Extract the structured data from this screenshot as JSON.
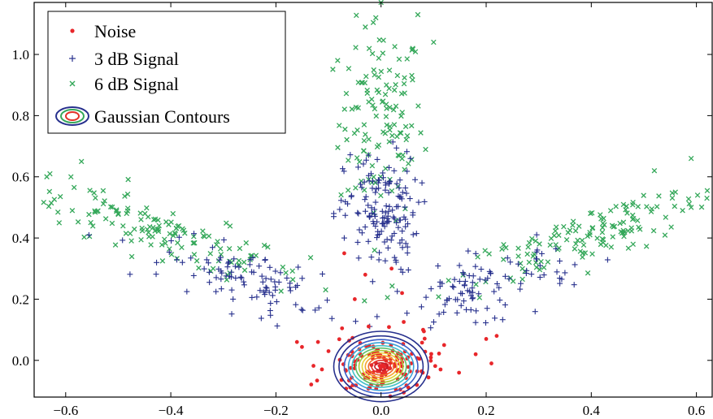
{
  "chart_data": {
    "type": "scatter",
    "title": "",
    "xlabel": "",
    "ylabel": "",
    "xlim": [
      -0.66,
      0.63
    ],
    "ylim": [
      -0.12,
      1.17
    ],
    "x_ticks": [
      -0.6,
      -0.4,
      -0.2,
      0.0,
      0.2,
      0.4,
      0.6
    ],
    "x_tick_labels": [
      "−0.6",
      "−0.4",
      "−0.2",
      "0.0",
      "0.2",
      "0.4",
      "0.6"
    ],
    "y_ticks": [
      0.0,
      0.2,
      0.4,
      0.6,
      0.8,
      1.0
    ],
    "y_tick_labels": [
      "0.0",
      "0.2",
      "0.4",
      "0.6",
      "0.8",
      "1.0"
    ],
    "grid": false,
    "legend_position": "top-left",
    "series": [
      {
        "name": "Noise",
        "marker": "dot",
        "color": "#e8262a",
        "clusters": [
          {
            "cx": 0.0,
            "cy": -0.02,
            "sx": 0.05,
            "sy": 0.05,
            "n": 150
          }
        ],
        "extra_points": [
          [
            -0.07,
            0.35
          ],
          [
            -0.03,
            0.28
          ],
          [
            0.02,
            0.3
          ],
          [
            -0.12,
            0.06
          ],
          [
            0.12,
            0.05
          ],
          [
            0.18,
            0.02
          ],
          [
            0.2,
            0.07
          ],
          [
            -0.16,
            0.06
          ],
          [
            0.22,
            0.08
          ],
          [
            0.21,
            -0.01
          ],
          [
            -0.1,
            0.03
          ],
          [
            0.08,
            0.1
          ],
          [
            -0.05,
            0.2
          ],
          [
            0.04,
            0.22
          ]
        ]
      },
      {
        "name": "3 dB Signal",
        "marker": "plus",
        "color": "#27308d",
        "clusters": [
          {
            "cx": 0.0,
            "cy": 0.48,
            "sx": 0.035,
            "sy": 0.1,
            "n": 150
          },
          {
            "cx": -0.24,
            "cy": 0.26,
            "sx": 0.06,
            "sy": 0.07,
            "n": 100
          },
          {
            "cx": 0.2,
            "cy": 0.24,
            "sx": 0.06,
            "sy": 0.07,
            "n": 100
          }
        ],
        "extra_points": [
          [
            -0.09,
            0.47
          ],
          [
            -0.07,
            0.4
          ],
          [
            -0.09,
            0.48
          ]
        ]
      },
      {
        "name": "6 dB Signal",
        "marker": "x",
        "color": "#35a85a",
        "clusters": [
          {
            "cx": 0.0,
            "cy": 0.78,
            "sx": 0.04,
            "sy": 0.16,
            "n": 130
          },
          {
            "cx": -0.42,
            "cy": 0.42,
            "sx": 0.1,
            "sy": 0.06,
            "n": 150
          },
          {
            "cx": 0.42,
            "cy": 0.42,
            "sx": 0.1,
            "sy": 0.06,
            "n": 150
          }
        ],
        "extra_points": [
          [
            0.0,
            1.17
          ],
          [
            0.07,
            1.13
          ],
          [
            0.1,
            1.04
          ],
          [
            -0.01,
            1.12
          ],
          [
            -0.63,
            0.61
          ],
          [
            -0.59,
            0.6
          ],
          [
            -0.57,
            0.65
          ],
          [
            0.59,
            0.5
          ],
          [
            0.62,
            0.53
          ],
          [
            0.56,
            0.55
          ],
          [
            0.59,
            0.66
          ],
          [
            0.52,
            0.62
          ],
          [
            -0.5,
            0.48
          ]
        ]
      },
      {
        "name": "Gaussian Contours",
        "type": "contour",
        "center": [
          0.0,
          -0.02
        ],
        "radii_x": [
          0.09,
          0.08,
          0.07,
          0.062,
          0.055,
          0.048,
          0.042,
          0.036,
          0.03,
          0.024,
          0.018,
          0.012
        ],
        "radii_y": [
          0.115,
          0.1,
          0.088,
          0.078,
          0.068,
          0.06,
          0.052,
          0.044,
          0.036,
          0.028,
          0.02,
          0.012
        ],
        "colors": [
          "#27308d",
          "#27308d",
          "#3b5ec7",
          "#3aa0d8",
          "#44c1c8",
          "#5fbf6a",
          "#a9cc3c",
          "#e8d23a",
          "#f3a630",
          "#ee6a2a",
          "#e3322a",
          "#c21e2a"
        ]
      }
    ]
  }
}
